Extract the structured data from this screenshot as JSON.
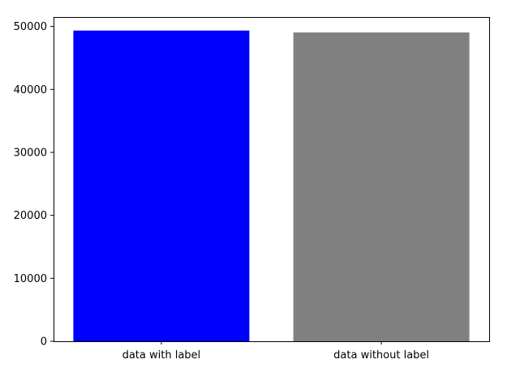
{
  "chart_data": {
    "type": "bar",
    "title": "",
    "xlabel": "",
    "ylabel": "",
    "categories": [
      "data with label",
      "data without label"
    ],
    "values": [
      49350,
      49050
    ],
    "colors": [
      "#0000ff",
      "#808080"
    ],
    "ylim": [
      0,
      51500
    ],
    "yticks": [
      0,
      10000,
      20000,
      30000,
      40000,
      50000
    ],
    "ytick_labels": [
      "0",
      "10000",
      "20000",
      "30000",
      "40000",
      "50000"
    ],
    "grid": false,
    "legend": "none"
  }
}
